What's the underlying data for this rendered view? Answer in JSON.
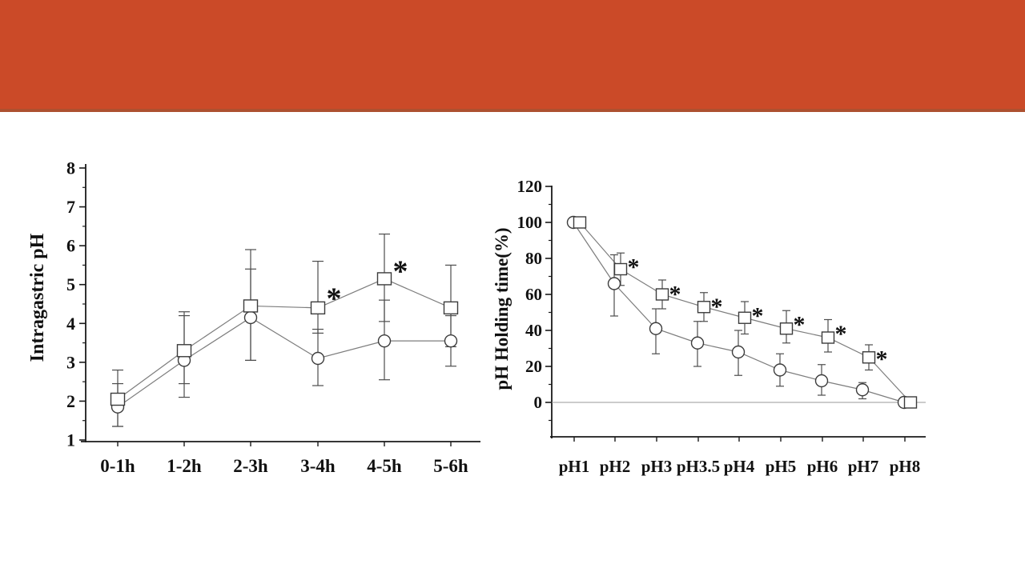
{
  "slide": {
    "background": "#ffffff"
  },
  "banner": {
    "color": "#cb4a28",
    "edge_color": "#ad5130"
  },
  "annotation_symbol": "*",
  "chart_data": [
    {
      "type": "line",
      "title": "",
      "xlabel": "",
      "ylabel": "Intragastric pH",
      "ylim": [
        1,
        8
      ],
      "grid": false,
      "legend_position": "none",
      "yticks": [
        1,
        2,
        3,
        4,
        5,
        6,
        7,
        8
      ],
      "yminor_step": 0.5,
      "categories": [
        "0-1h",
        "1-2h",
        "2-3h",
        "3-4h",
        "4-5h",
        "5-6h"
      ],
      "series": [
        {
          "name": "circle-group",
          "marker": "circle",
          "values": [
            1.85,
            3.05,
            4.15,
            3.1,
            3.55,
            3.55
          ],
          "err_lo": [
            1.35,
            2.1,
            3.05,
            2.4,
            2.55,
            2.9
          ],
          "err_hi": [
            2.45,
            4.3,
            5.4,
            3.85,
            4.6,
            4.2
          ],
          "significant": [
            false,
            false,
            false,
            false,
            false,
            false
          ]
        },
        {
          "name": "square-group",
          "marker": "square",
          "values": [
            2.05,
            3.3,
            4.45,
            4.4,
            5.15,
            4.4
          ],
          "err_lo": [
            1.35,
            2.45,
            3.05,
            3.75,
            4.05,
            3.4
          ],
          "err_hi": [
            2.8,
            4.2,
            5.9,
            5.6,
            6.3,
            5.5
          ],
          "significant": [
            false,
            false,
            false,
            true,
            true,
            false
          ]
        }
      ]
    },
    {
      "type": "line",
      "title": "",
      "xlabel": "",
      "ylabel": "pH Holding time(%)",
      "ylim": [
        -20,
        120
      ],
      "grid": false,
      "legend_position": "none",
      "yticks": [
        0,
        20,
        40,
        60,
        80,
        100,
        120
      ],
      "yminor_step": 10,
      "baseline_at_zero": true,
      "categories": [
        "pH1",
        "pH2",
        "pH3",
        "pH3.5",
        "pH4",
        "pH5",
        "pH6",
        "pH7",
        "pH8"
      ],
      "series": [
        {
          "name": "circle-group",
          "marker": "circle",
          "values": [
            100,
            66,
            41,
            33,
            28,
            18,
            12,
            7,
            0
          ],
          "err_lo": [
            100,
            48,
            27,
            20,
            15,
            9,
            4,
            2,
            0
          ],
          "err_hi": [
            100,
            82,
            52,
            45,
            40,
            27,
            21,
            11,
            0
          ],
          "significant": [
            false,
            false,
            false,
            false,
            false,
            false,
            false,
            false,
            false
          ]
        },
        {
          "name": "square-group",
          "marker": "square",
          "values": [
            100,
            74,
            60,
            53,
            47,
            41,
            36,
            25,
            0
          ],
          "err_lo": [
            100,
            65,
            52,
            45,
            38,
            33,
            28,
            18,
            0
          ],
          "err_hi": [
            100,
            83,
            68,
            61,
            56,
            51,
            46,
            32,
            0
          ],
          "significant": [
            false,
            true,
            true,
            true,
            true,
            true,
            true,
            true,
            false
          ]
        }
      ]
    }
  ]
}
